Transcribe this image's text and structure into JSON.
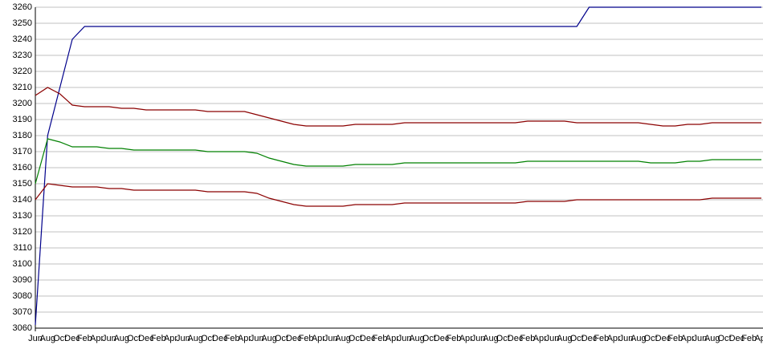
{
  "chart_data": {
    "type": "line",
    "categories": [
      "Jun",
      "Aug",
      "Oct",
      "Dec",
      "Feb",
      "Apr",
      "Jun",
      "Aug",
      "Oct",
      "Dec",
      "Feb",
      "Apr",
      "Jun",
      "Aug",
      "Oct",
      "Dec",
      "Feb",
      "Apr",
      "Jun",
      "Aug",
      "Oct",
      "Dec",
      "Feb",
      "Apr",
      "Jun",
      "Aug",
      "Oct",
      "Dec",
      "Feb",
      "Apr",
      "Jun",
      "Aug",
      "Oct",
      "Dec",
      "Feb",
      "Apr",
      "Jun",
      "Aug",
      "Oct",
      "Dec",
      "Feb",
      "Apr",
      "Jun",
      "Aug",
      "Oct",
      "Dec",
      "Feb",
      "Apr",
      "Jun",
      "Aug",
      "Oct",
      "Dec",
      "Feb",
      "Apr",
      "Jun",
      "Aug",
      "Oct",
      "Dec",
      "Feb",
      "Apr"
    ],
    "series": [
      {
        "color": "#00008b",
        "values": [
          3062,
          3180,
          3210,
          3240,
          3248,
          3248,
          3248,
          3248,
          3248,
          3248,
          3248,
          3248,
          3248,
          3248,
          3248,
          3248,
          3248,
          3248,
          3248,
          3248,
          3248,
          3248,
          3248,
          3248,
          3248,
          3248,
          3248,
          3248,
          3248,
          3248,
          3248,
          3248,
          3248,
          3248,
          3248,
          3248,
          3248,
          3248,
          3248,
          3248,
          3248,
          3248,
          3248,
          3248,
          3248,
          3260,
          3260,
          3260,
          3260,
          3260,
          3260,
          3260,
          3260,
          3260,
          3260,
          3260,
          3260,
          3260,
          3260,
          3260
        ]
      },
      {
        "color": "#8b0000",
        "values": [
          3205,
          3210,
          3206,
          3199,
          3198,
          3198,
          3198,
          3197,
          3197,
          3196,
          3196,
          3196,
          3196,
          3196,
          3195,
          3195,
          3195,
          3195,
          3193,
          3191,
          3189,
          3187,
          3186,
          3186,
          3186,
          3186,
          3187,
          3187,
          3187,
          3187,
          3188,
          3188,
          3188,
          3188,
          3188,
          3188,
          3188,
          3188,
          3188,
          3188,
          3189,
          3189,
          3189,
          3189,
          3188,
          3188,
          3188,
          3188,
          3188,
          3188,
          3187,
          3186,
          3186,
          3187,
          3187,
          3188,
          3188,
          3188,
          3188,
          3188
        ]
      },
      {
        "color": "#008000",
        "values": [
          3150,
          3178,
          3176,
          3173,
          3173,
          3173,
          3172,
          3172,
          3171,
          3171,
          3171,
          3171,
          3171,
          3171,
          3170,
          3170,
          3170,
          3170,
          3169,
          3166,
          3164,
          3162,
          3161,
          3161,
          3161,
          3161,
          3162,
          3162,
          3162,
          3162,
          3163,
          3163,
          3163,
          3163,
          3163,
          3163,
          3163,
          3163,
          3163,
          3163,
          3164,
          3164,
          3164,
          3164,
          3164,
          3164,
          3164,
          3164,
          3164,
          3164,
          3163,
          3163,
          3163,
          3164,
          3164,
          3165,
          3165,
          3165,
          3165,
          3165
        ]
      },
      {
        "color": "#8b0000",
        "values": [
          3140,
          3150,
          3149,
          3148,
          3148,
          3148,
          3147,
          3147,
          3146,
          3146,
          3146,
          3146,
          3146,
          3146,
          3145,
          3145,
          3145,
          3145,
          3144,
          3141,
          3139,
          3137,
          3136,
          3136,
          3136,
          3136,
          3137,
          3137,
          3137,
          3137,
          3138,
          3138,
          3138,
          3138,
          3138,
          3138,
          3138,
          3138,
          3138,
          3138,
          3139,
          3139,
          3139,
          3139,
          3140,
          3140,
          3140,
          3140,
          3140,
          3140,
          3140,
          3140,
          3140,
          3140,
          3140,
          3141,
          3141,
          3141,
          3141,
          3141
        ]
      }
    ],
    "ylim": [
      3060,
      3260
    ],
    "yticks": [
      3060,
      3070,
      3080,
      3090,
      3100,
      3110,
      3120,
      3130,
      3140,
      3150,
      3160,
      3170,
      3180,
      3190,
      3200,
      3210,
      3220,
      3230,
      3240,
      3250,
      3260
    ],
    "grid": true
  }
}
